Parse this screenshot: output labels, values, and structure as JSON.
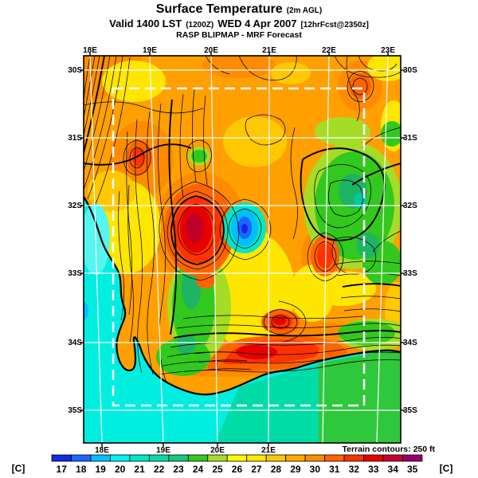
{
  "title": {
    "main": "Surface Temperature",
    "sub": "(2m AGL)"
  },
  "valid_line": {
    "prefix": "Valid 1400 LST",
    "zulu": "(1200Z)",
    "date": "WED 4 Apr 2007",
    "fcst": "[12hrFcst@2350z]"
  },
  "model_line": "RASP BLIPMAP - MRF Forecast",
  "axes": {
    "top": [
      "18E",
      "19E",
      "20E",
      "21E",
      "22E",
      "23E"
    ],
    "bottom": [
      "18E",
      "19E",
      "20E",
      "21E"
    ],
    "left": [
      "30S",
      "31S",
      "32S",
      "33S",
      "34S",
      "35S"
    ],
    "right": [
      "30S",
      "31S",
      "32S",
      "33S",
      "34S",
      "35S"
    ]
  },
  "colorbar": {
    "unit_left": "[C]",
    "unit_right": "[C]",
    "values": [
      "17",
      "18",
      "19",
      "20",
      "21",
      "22",
      "23",
      "24",
      "25",
      "26",
      "27",
      "28",
      "29",
      "30",
      "31",
      "32",
      "33",
      "34",
      "35"
    ],
    "colors": [
      "#1428E6",
      "#1E64FF",
      "#00BFFF",
      "#00F0F0",
      "#00E6C8",
      "#00DCA8",
      "#14C87D",
      "#32C81E",
      "#A5DC28",
      "#FAFA00",
      "#FFE600",
      "#FFC800",
      "#FFAA00",
      "#FF8C00",
      "#FF6400",
      "#FF3200",
      "#E60000",
      "#C80032",
      "#96006E"
    ]
  },
  "terrain_note": "Terrain contours: 250 ft",
  "map": {
    "land_base": "#FFA000",
    "ocean_atlantic": "#00EEE0",
    "ocean_indian_teal": "#00DCA8",
    "ocean_indian_green": "#2FC83C",
    "grid_color": "#FFFFFF",
    "domain_box_color": "#FFFFFF"
  }
}
